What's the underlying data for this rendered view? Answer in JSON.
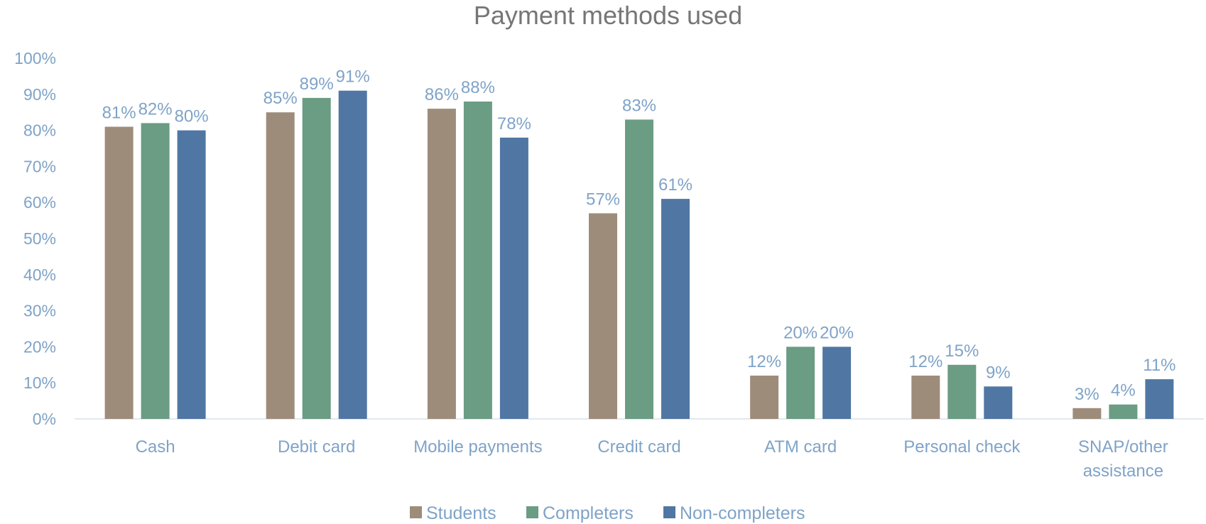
{
  "chart_data": {
    "type": "bar",
    "title": "Payment methods used",
    "categories": [
      "Cash",
      "Debit card",
      "Mobile payments",
      "Credit card",
      "ATM card",
      "Personal check",
      "SNAP/other assistance"
    ],
    "category_lines": [
      [
        "Cash"
      ],
      [
        "Debit card"
      ],
      [
        "Mobile payments"
      ],
      [
        "Credit card"
      ],
      [
        "ATM card"
      ],
      [
        "Personal check"
      ],
      [
        "SNAP/other",
        "assistance"
      ]
    ],
    "series": [
      {
        "name": "Students",
        "values": [
          81,
          85,
          86,
          57,
          12,
          12,
          3
        ],
        "color": "#9e8c7b"
      },
      {
        "name": "Completers",
        "values": [
          82,
          89,
          88,
          83,
          20,
          15,
          4
        ],
        "color": "#6b9c84"
      },
      {
        "name": "Non-completers",
        "values": [
          80,
          91,
          78,
          61,
          20,
          9,
          11
        ],
        "color": "#5077a3"
      }
    ],
    "ylim": [
      0,
      100
    ],
    "yticks": [
      0,
      10,
      20,
      30,
      40,
      50,
      60,
      70,
      80,
      90,
      100
    ],
    "ytick_labels": [
      "0%",
      "10%",
      "20%",
      "30%",
      "40%",
      "50%",
      "60%",
      "70%",
      "80%",
      "90%",
      "100%"
    ],
    "data_label_suffix": "%",
    "xlabel": "",
    "ylabel": "",
    "legend": "bottom",
    "grid": false,
    "axis_color": "#d9e1ea",
    "text_color": "#7fa3c8",
    "title_color": "#767676"
  }
}
